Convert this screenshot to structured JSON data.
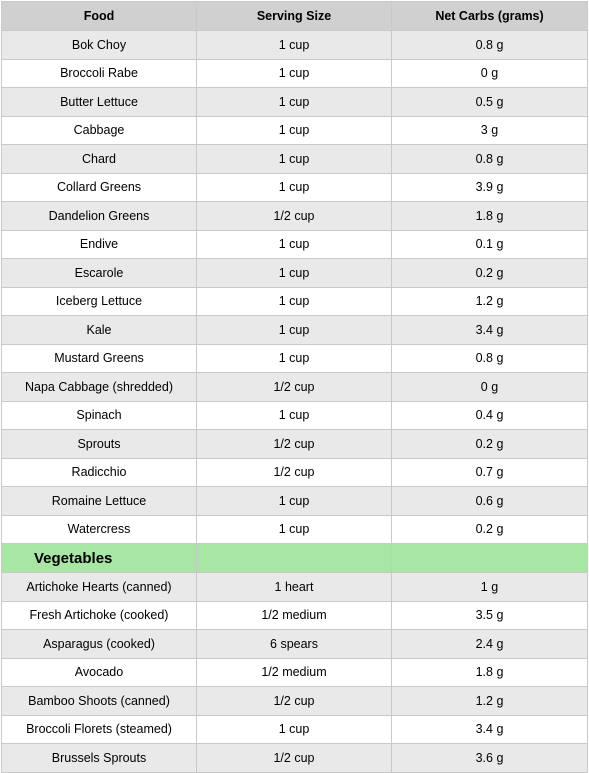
{
  "headers": [
    "Food",
    "Serving Size",
    "Net Carbs (grams)"
  ],
  "leafy_rows": [
    [
      "Bok Choy",
      "1 cup",
      "0.8 g"
    ],
    [
      "Broccoli Rabe",
      "1 cup",
      "0 g"
    ],
    [
      "Butter Lettuce",
      "1 cup",
      "0.5 g"
    ],
    [
      "Cabbage",
      "1 cup",
      "3 g"
    ],
    [
      "Chard",
      "1 cup",
      "0.8 g"
    ],
    [
      "Collard Greens",
      "1 cup",
      "3.9 g"
    ],
    [
      "Dandelion Greens",
      "1/2 cup",
      "1.8 g"
    ],
    [
      "Endive",
      "1 cup",
      "0.1 g"
    ],
    [
      "Escarole",
      "1 cup",
      "0.2 g"
    ],
    [
      "Iceberg Lettuce",
      "1 cup",
      "1.2 g"
    ],
    [
      "Kale",
      "1 cup",
      "3.4 g"
    ],
    [
      "Mustard Greens",
      "1 cup",
      "0.8 g"
    ],
    [
      "Napa Cabbage (shredded)",
      "1/2 cup",
      "0 g"
    ],
    [
      "Spinach",
      "1 cup",
      "0.4 g"
    ],
    [
      "Sprouts",
      "1/2 cup",
      "0.2 g"
    ],
    [
      "Radicchio",
      "1/2 cup",
      "0.7 g"
    ],
    [
      "Romaine Lettuce",
      "1 cup",
      "0.6 g"
    ],
    [
      "Watercress",
      "1 cup",
      "0.2 g"
    ]
  ],
  "section_title": "Vegetables",
  "vegetable_rows": [
    [
      "Artichoke Hearts (canned)",
      "1 heart",
      "1 g"
    ],
    [
      "Fresh Artichoke (cooked)",
      "1/2 medium",
      "3.5 g"
    ],
    [
      "Asparagus (cooked)",
      "6 spears",
      "2.4 g"
    ],
    [
      "Avocado",
      "1/2 medium",
      "1.8 g"
    ],
    [
      "Bamboo Shoots (canned)",
      "1/2 cup",
      "1.2 g"
    ],
    [
      "Broccoli Florets (steamed)",
      "1 cup",
      "3.4 g"
    ],
    [
      "Brussels Sprouts",
      "1/2 cup",
      "3.6 g"
    ]
  ],
  "colors": {
    "header_bg": "#d0d0d0",
    "row_shade": "#e9e9e9",
    "section_bg": "#a8e6a3",
    "border": "#c9c9c9"
  }
}
